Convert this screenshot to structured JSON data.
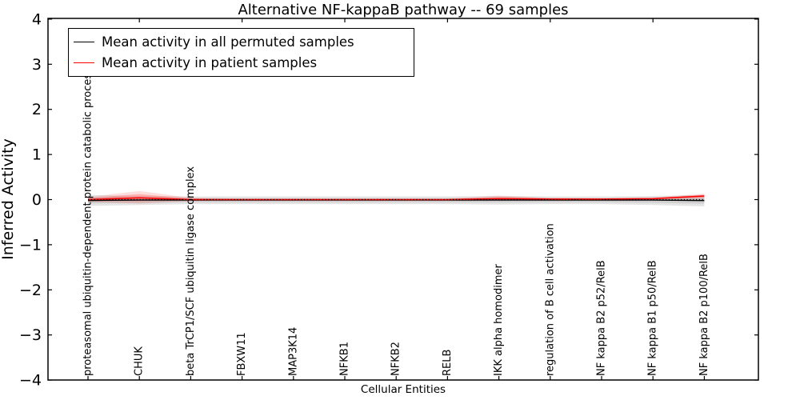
{
  "chart_data": {
    "type": "line",
    "title": "Alternative NF-kappaB pathway -- 69 samples",
    "xlabel": "Cellular Entities",
    "ylabel": "Inferred Activity",
    "ylim": [
      -4,
      4
    ],
    "yticks": [
      4,
      3,
      2,
      1,
      0,
      -1,
      -2,
      -3,
      -4
    ],
    "grid": false,
    "legend_position": "upper left",
    "categories": [
      "proteasomal ubiquitin-dependent protein catabolic process",
      "CHUK",
      "beta TrCP1/SCF ubiquitin ligase complex",
      "FBXW11",
      "MAP3K14",
      "NFKB1",
      "NFKB2",
      "RELB",
      "IKK alpha homodimer",
      "regulation of B cell activation",
      "NF kappa B2 p52/RelB",
      "NF kappa B1 p50/RelB",
      "NF kappa B2 p100/RelB"
    ],
    "series": [
      {
        "name": "Mean activity in all permuted samples",
        "color": "#000000",
        "values": [
          -0.02,
          -0.01,
          -0.01,
          -0.01,
          -0.01,
          -0.01,
          -0.01,
          -0.01,
          -0.01,
          -0.01,
          -0.01,
          -0.01,
          -0.02
        ],
        "band_upper": [
          0.1,
          0.08,
          0.07,
          0.07,
          0.07,
          0.07,
          0.07,
          0.07,
          0.08,
          0.07,
          0.07,
          0.08,
          0.1
        ],
        "band_lower": [
          -0.14,
          -0.12,
          -0.1,
          -0.1,
          -0.1,
          -0.1,
          -0.1,
          -0.1,
          -0.11,
          -0.1,
          -0.1,
          -0.12,
          -0.15
        ]
      },
      {
        "name": "Mean activity in patient samples",
        "color": "#ff0000",
        "values": [
          0.0,
          0.04,
          0.0,
          0.0,
          0.0,
          0.0,
          0.0,
          0.0,
          0.02,
          0.01,
          0.01,
          0.02,
          0.08
        ],
        "band_upper": [
          0.06,
          0.19,
          0.04,
          0.02,
          0.02,
          0.02,
          0.02,
          0.02,
          0.09,
          0.04,
          0.03,
          0.05,
          0.13
        ],
        "band_lower": [
          -0.05,
          -0.09,
          -0.03,
          -0.01,
          -0.01,
          -0.01,
          -0.01,
          -0.01,
          -0.02,
          -0.01,
          -0.01,
          0.0,
          0.02
        ]
      }
    ],
    "zero_line": {
      "y": 0,
      "style": "dotted",
      "color": "#000000"
    }
  }
}
